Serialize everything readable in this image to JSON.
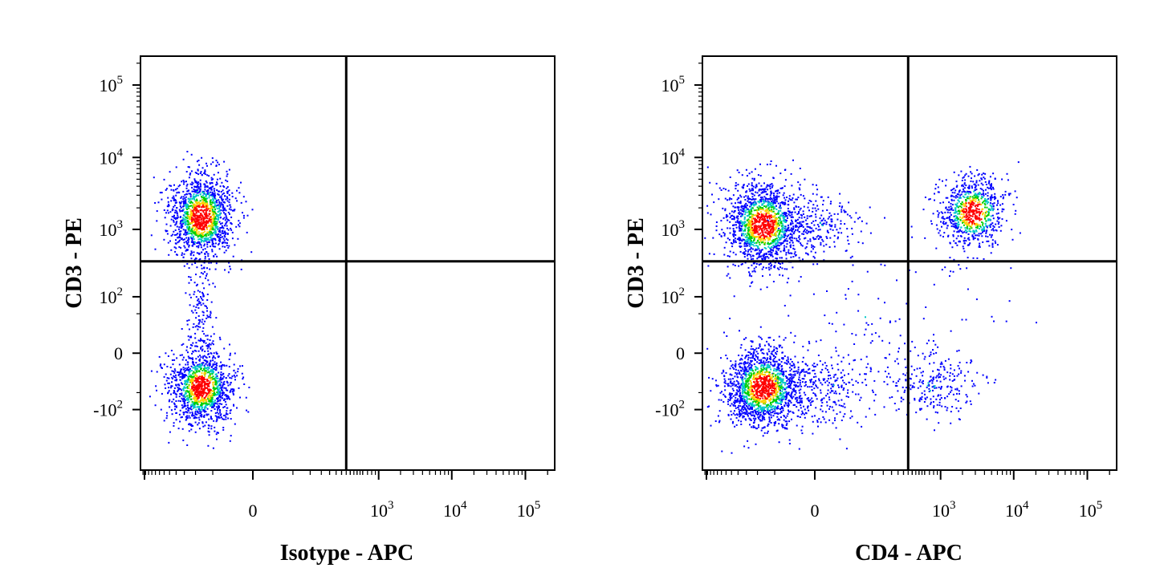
{
  "colors": {
    "background": "#ffffff",
    "axes": "#000000",
    "quadrant_lines": "#000000",
    "density_low": "#0000ff",
    "density_mid": "#00c8c8",
    "density_mid2": "#00d000",
    "density_high": "#ffd000",
    "density_max": "#ff0000"
  },
  "chart_data": [
    {
      "type": "scatter",
      "subtype": "flow-cytometry density dot plot with quadrant gates",
      "xlabel": "Isotype - APC",
      "ylabel": "CD3 - PE",
      "x_scale": "biexponential",
      "y_scale": "biexponential",
      "x_tick_labels": [
        {
          "base": "0",
          "exp": ""
        },
        {
          "base": "10",
          "exp": "3"
        },
        {
          "base": "10",
          "exp": "4"
        },
        {
          "base": "10",
          "exp": "5"
        }
      ],
      "y_tick_labels": [
        {
          "base": "-10",
          "exp": "2"
        },
        {
          "base": "0",
          "exp": ""
        },
        {
          "base": "10",
          "exp": "2"
        },
        {
          "base": "10",
          "exp": "3"
        },
        {
          "base": "10",
          "exp": "4"
        },
        {
          "base": "10",
          "exp": "5"
        }
      ],
      "quadrant_gate": {
        "x": 350,
        "y": 350
      },
      "populations": [
        {
          "name": "",
          "x_center": 0,
          "y_center": 3500,
          "relative_density": "high"
        },
        {
          "name": "",
          "x_center": 0,
          "y_center": 0,
          "relative_density": "high"
        }
      ],
      "grid": false,
      "legend": "none"
    },
    {
      "type": "scatter",
      "subtype": "flow-cytometry density dot plot with quadrant gates",
      "xlabel": "CD4 - APC",
      "ylabel": "CD3 - PE",
      "x_scale": "biexponential",
      "y_scale": "biexponential",
      "x_tick_labels": [
        {
          "base": "0",
          "exp": ""
        },
        {
          "base": "10",
          "exp": "3"
        },
        {
          "base": "10",
          "exp": "4"
        },
        {
          "base": "10",
          "exp": "5"
        }
      ],
      "y_tick_labels": [
        {
          "base": "-10",
          "exp": "2"
        },
        {
          "base": "0",
          "exp": ""
        },
        {
          "base": "10",
          "exp": "2"
        },
        {
          "base": "10",
          "exp": "3"
        },
        {
          "base": "10",
          "exp": "4"
        },
        {
          "base": "10",
          "exp": "5"
        }
      ],
      "quadrant_gate": {
        "x": 350,
        "y": 350
      },
      "populations": [
        {
          "name": "",
          "x_center": 0,
          "y_center": 3000,
          "relative_density": "high"
        },
        {
          "name": "",
          "x_center": 5500,
          "y_center": 3800,
          "relative_density": "high"
        },
        {
          "name": "",
          "x_center": 0,
          "y_center": 0,
          "relative_density": "high"
        },
        {
          "name": "",
          "x_center": 1800,
          "y_center": 0,
          "relative_density": "low"
        }
      ],
      "grid": false,
      "legend": "none"
    }
  ]
}
